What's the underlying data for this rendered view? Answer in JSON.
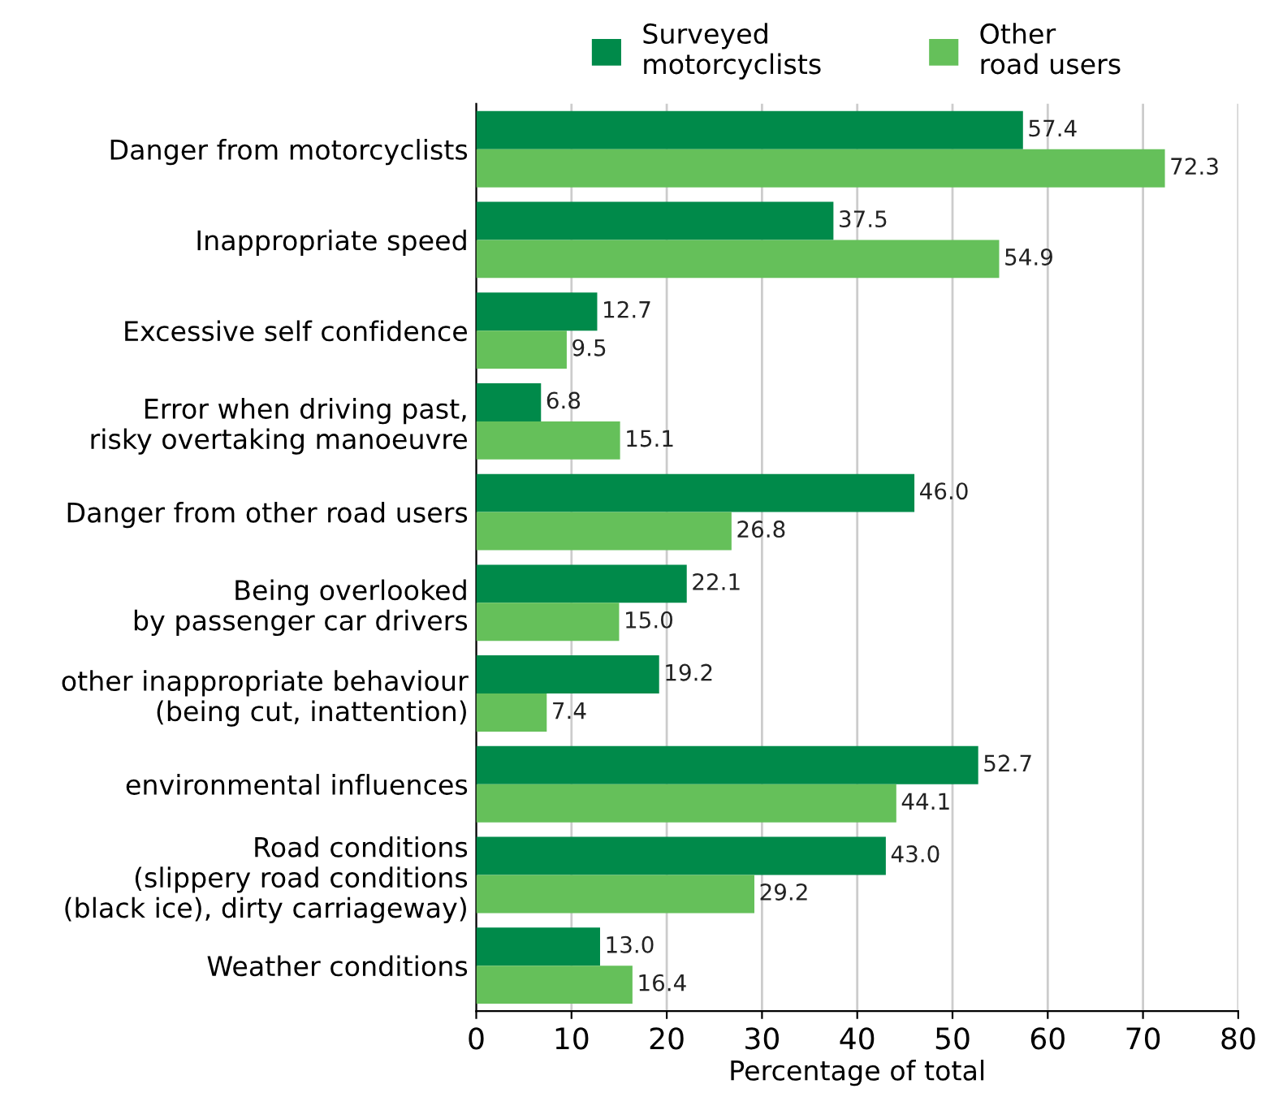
{
  "chart_data": {
    "type": "bar",
    "orientation": "horizontal",
    "xlabel": "Percentage of total",
    "categories": [
      "Danger from motorcyclists",
      "Inappropriate speed",
      "Excessive self confidence",
      "Error when driving past,\nrisky overtaking manoeuvre",
      "Danger from other road users",
      "Being overlooked\nby passenger car drivers",
      "other inappropriate behaviour\n(being cut, inattention)",
      "environmental influences",
      "Road conditions\n(slippery road conditions\n(black ice), dirty carriageway)",
      "Weather conditions"
    ],
    "series": [
      {
        "name": "Surveyed\nmotorcyclists",
        "color": "#008a4a",
        "values": [
          57.4,
          37.5,
          12.7,
          6.8,
          46.0,
          22.1,
          19.2,
          52.7,
          43.0,
          13.0
        ],
        "value_labels": [
          "57.4",
          "37.5",
          "12.7",
          "6.8",
          "46.0",
          "22.1",
          "19.2",
          "52.7",
          "43.0",
          "13.0"
        ]
      },
      {
        "name": "Other\nroad users",
        "color": "#65c05a",
        "values": [
          72.3,
          54.9,
          9.5,
          15.1,
          26.8,
          15.0,
          7.4,
          44.1,
          29.2,
          16.4
        ],
        "value_labels": [
          "72.3",
          "54.9",
          "9.5",
          "15.1",
          "26.8",
          "15.0",
          "7.4",
          "44.1",
          "29.2",
          "16.4"
        ]
      }
    ],
    "xlim": [
      0,
      80
    ],
    "xticks": [
      0,
      10,
      20,
      30,
      40,
      50,
      60,
      70,
      80
    ],
    "grid": "x",
    "legend": "top"
  }
}
